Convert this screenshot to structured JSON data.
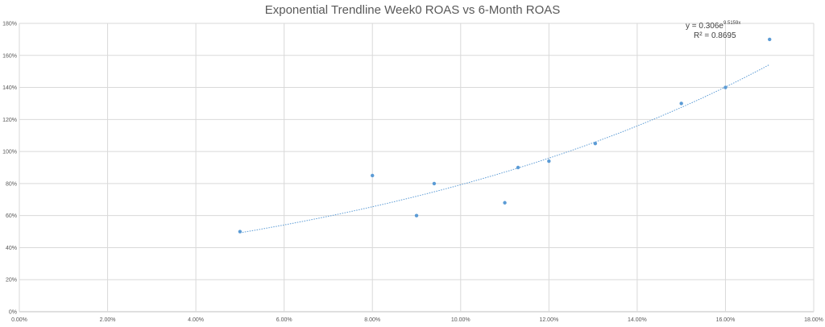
{
  "chart_data": {
    "type": "scatter",
    "title": "Exponential Trendline Week0 ROAS vs 6-Month ROAS",
    "x": [
      5.0,
      8.0,
      9.0,
      9.4,
      11.0,
      11.3,
      12.0,
      13.05,
      15.0,
      16.0,
      17.0
    ],
    "y": [
      50,
      85,
      60,
      80,
      68,
      90,
      94,
      105,
      130,
      140,
      170
    ],
    "xlim": [
      0,
      18
    ],
    "ylim": [
      0,
      180
    ],
    "x_ticks": [
      "0.00%",
      "2.00%",
      "4.00%",
      "6.00%",
      "8.00%",
      "10.00%",
      "12.00%",
      "14.00%",
      "16.00%",
      "18.00%"
    ],
    "y_ticks": [
      "0%",
      "20%",
      "40%",
      "60%",
      "80%",
      "100%",
      "120%",
      "140%",
      "160%",
      "180%"
    ],
    "grid": true,
    "trendline": {
      "type": "exponential",
      "a": 0.306,
      "b": 9.5159,
      "x_range": [
        5.0,
        17.0
      ],
      "equation_prefix": "y = 0.306e",
      "equation_exponent": "9.5159x",
      "r_squared": "R² = 0.8695"
    },
    "colors": {
      "points": "#5b9bd5",
      "trendline": "#5b9bd5",
      "grid": "#d9d9d9"
    }
  }
}
